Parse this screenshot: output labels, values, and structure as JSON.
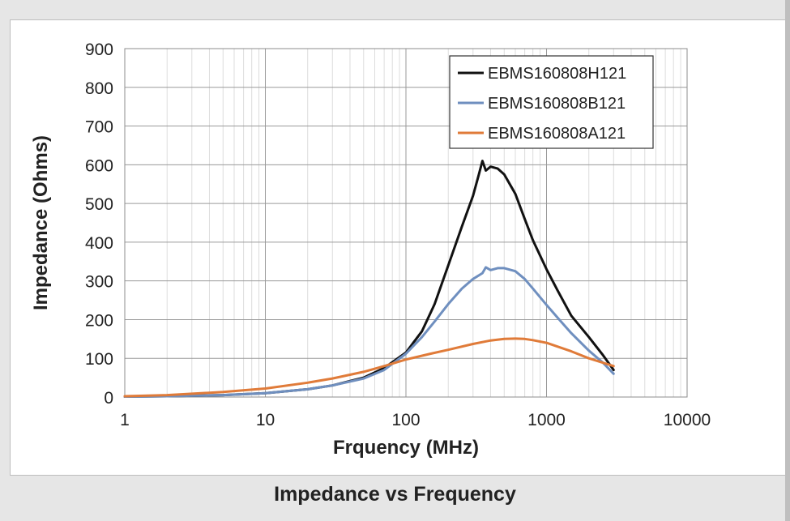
{
  "caption": "Impedance vs Frequency",
  "chart_data": {
    "type": "line",
    "title": "",
    "xlabel": "Frquency (MHz)",
    "ylabel": "Impedance (Ohms)",
    "x_scale": "log",
    "xlim": [
      1,
      10000
    ],
    "ylim": [
      0,
      900
    ],
    "x_ticks": [
      1,
      10,
      100,
      1000,
      10000
    ],
    "x_tick_labels": [
      "1",
      "10",
      "100",
      "1000",
      "10000"
    ],
    "y_ticks": [
      0,
      100,
      200,
      300,
      400,
      500,
      600,
      700,
      800,
      900
    ],
    "y_tick_labels": [
      "0",
      "100",
      "200",
      "300",
      "400",
      "500",
      "600",
      "700",
      "800",
      "900"
    ],
    "grid": true,
    "legend_position": "top-right",
    "series": [
      {
        "name": "EBMS160808H121",
        "color": "#111111",
        "x": [
          1,
          2,
          5,
          10,
          20,
          30,
          50,
          70,
          100,
          130,
          160,
          200,
          250,
          300,
          330,
          350,
          370,
          400,
          450,
          500,
          600,
          700,
          800,
          1000,
          1200,
          1500,
          2000,
          2500,
          3000
        ],
        "y": [
          1,
          2,
          5,
          10,
          20,
          30,
          50,
          75,
          115,
          170,
          240,
          340,
          440,
          520,
          575,
          610,
          585,
          595,
          590,
          575,
          525,
          460,
          405,
          330,
          275,
          210,
          155,
          110,
          70
        ]
      },
      {
        "name": "EBMS160808B121",
        "color": "#6f8fbf",
        "x": [
          1,
          2,
          5,
          10,
          20,
          30,
          50,
          70,
          100,
          130,
          160,
          200,
          250,
          300,
          350,
          370,
          400,
          450,
          500,
          600,
          700,
          800,
          1000,
          1200,
          1500,
          2000,
          2500,
          3000
        ],
        "y": [
          1,
          2,
          5,
          10,
          20,
          30,
          48,
          70,
          112,
          155,
          195,
          240,
          280,
          305,
          320,
          335,
          328,
          333,
          333,
          325,
          305,
          280,
          238,
          205,
          165,
          120,
          90,
          60
        ]
      },
      {
        "name": "EBMS160808A121",
        "color": "#e07b39",
        "x": [
          1,
          2,
          5,
          10,
          20,
          30,
          50,
          70,
          100,
          150,
          200,
          300,
          400,
          500,
          600,
          700,
          800,
          1000,
          1500,
          2000,
          3000
        ],
        "y": [
          2,
          5,
          13,
          22,
          37,
          48,
          65,
          80,
          97,
          112,
          122,
          137,
          146,
          150,
          151,
          150,
          147,
          140,
          118,
          100,
          80
        ]
      }
    ]
  }
}
